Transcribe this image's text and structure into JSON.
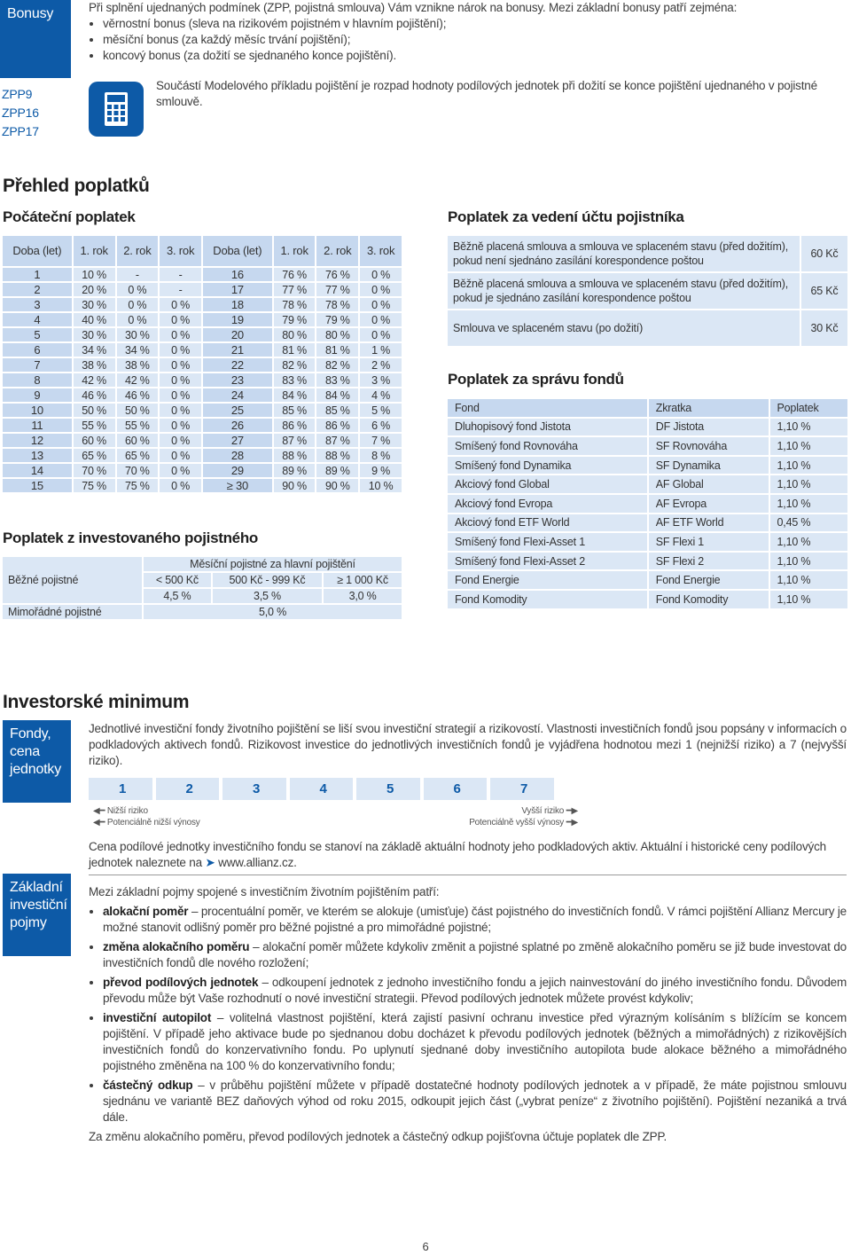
{
  "bonus": {
    "side_label": "Bonusy",
    "zpp": [
      "ZPP9",
      "ZPP16",
      "ZPP17"
    ],
    "intro": "Při splnění ujednaných podmínek (ZPP, pojistná smlouva) Vám vznikne nárok na bonusy. Mezi základní bonusy patří zejména:",
    "items": [
      "věrnostní bonus (sleva na rizikovém pojistném v hlavním pojištění);",
      "měsíční bonus (za každý měsíc trvání pojištění);",
      "koncový bonus (za dožití se sjednaného konce pojištění)."
    ],
    "note": "Součástí Modelového příkladu pojištění je rozpad hodnoty podílových jednotek při dožití se konce pojištění ujednaného v pojistné smlouvě."
  },
  "fees": {
    "title": "Přehled poplatků"
  },
  "initial": {
    "title": "Počáteční poplatek",
    "headers": [
      "Doba (let)",
      "1. rok",
      "2. rok",
      "3. rok",
      "Doba (let)",
      "1. rok",
      "2. rok",
      "3. rok"
    ],
    "rows": [
      [
        "1",
        "10 %",
        "-",
        "-",
        "16",
        "76 %",
        "76 %",
        "0 %"
      ],
      [
        "2",
        "20 %",
        "0 %",
        "-",
        "17",
        "77 %",
        "77 %",
        "0 %"
      ],
      [
        "3",
        "30 %",
        "0 %",
        "0 %",
        "18",
        "78 %",
        "78 %",
        "0 %"
      ],
      [
        "4",
        "40 %",
        "0 %",
        "0 %",
        "19",
        "79 %",
        "79 %",
        "0 %"
      ],
      [
        "5",
        "30 %",
        "30 %",
        "0 %",
        "20",
        "80 %",
        "80 %",
        "0 %"
      ],
      [
        "6",
        "34 %",
        "34 %",
        "0 %",
        "21",
        "81 %",
        "81 %",
        "1 %"
      ],
      [
        "7",
        "38 %",
        "38 %",
        "0 %",
        "22",
        "82 %",
        "82 %",
        "2 %"
      ],
      [
        "8",
        "42 %",
        "42 %",
        "0 %",
        "23",
        "83 %",
        "83 %",
        "3 %"
      ],
      [
        "9",
        "46 %",
        "46 %",
        "0 %",
        "24",
        "84 %",
        "84 %",
        "4 %"
      ],
      [
        "10",
        "50 %",
        "50 %",
        "0 %",
        "25",
        "85 %",
        "85 %",
        "5 %"
      ],
      [
        "11",
        "55 %",
        "55 %",
        "0 %",
        "26",
        "86 %",
        "86 %",
        "6 %"
      ],
      [
        "12",
        "60 %",
        "60 %",
        "0 %",
        "27",
        "87 %",
        "87 %",
        "7 %"
      ],
      [
        "13",
        "65 %",
        "65 %",
        "0 %",
        "28",
        "88 %",
        "88 %",
        "8 %"
      ],
      [
        "14",
        "70 %",
        "70 %",
        "0 %",
        "29",
        "89 %",
        "89 %",
        "9 %"
      ],
      [
        "15",
        "75 %",
        "75 %",
        "0 %",
        "≥ 30",
        "90 %",
        "90 %",
        "10 %"
      ]
    ]
  },
  "invested": {
    "title": "Poplatek z investovaného pojistného",
    "regular_label": "Běžné pojistné",
    "header": "Měsíční pojistné za hlavní pojištění",
    "bands": [
      "< 500 Kč",
      "500 Kč - 999 Kč",
      "≥ 1 000 Kč"
    ],
    "rates": [
      "4,5 %",
      "3,5 %",
      "3,0 %"
    ],
    "extra_label": "Mimořádné pojistné",
    "extra_rate": "5,0 %"
  },
  "account": {
    "title": "Poplatek za vedení účtu pojistníka",
    "rows": [
      [
        "Běžně placená smlouva a smlouva ve splaceném stavu (před dožitím), pokud není sjednáno zasílání korespondence poštou",
        "60 Kč"
      ],
      [
        "Běžně placená smlouva a smlouva ve splaceném stavu (před dožitím), pokud je sjednáno zasílání korespondence poštou",
        "65 Kč"
      ],
      [
        "Smlouva ve splaceném stavu (po dožití)",
        "30 Kč"
      ]
    ]
  },
  "fund_admin": {
    "title": "Poplatek za správu fondů",
    "headers": [
      "Fond",
      "Zkratka",
      "Poplatek"
    ],
    "rows": [
      [
        "Dluhopisový fond Jistota",
        "DF Jistota",
        "1,10 %"
      ],
      [
        "Smíšený fond Rovnováha",
        "SF Rovnováha",
        "1,10 %"
      ],
      [
        "Smíšený fond Dynamika",
        "SF Dynamika",
        "1,10 %"
      ],
      [
        "Akciový fond Global",
        "AF Global",
        "1,10 %"
      ],
      [
        "Akciový fond Evropa",
        "AF Evropa",
        "1,10 %"
      ],
      [
        "Akciový fond ETF World",
        "AF ETF World",
        "0,45 %"
      ],
      [
        "Smíšený fond Flexi-Asset 1",
        "SF Flexi 1",
        "1,10 %"
      ],
      [
        "Smíšený fond Flexi-Asset 2",
        "SF Flexi 2",
        "1,10 %"
      ],
      [
        "Fond Energie",
        "Fond Energie",
        "1,10 %"
      ],
      [
        "Fond Komodity",
        "Fond Komodity",
        "1,10 %"
      ]
    ]
  },
  "minimum": {
    "title": "Investorské minimum",
    "side_label": "Fondy, cena jednotky",
    "text": "Jednotlivé investiční fondy životního pojištění se liší svou investiční strategií a rizikovostí. Vlastnosti investičních fondů jsou popsány v informacích o podkladových aktivech fondů. Rizikovost investice do jednotlivých investičních fondů je vyjádřena hodnotou mezi 1 (nejnižší riziko) a 7 (nejvyšší riziko).",
    "risk": [
      1,
      2,
      3,
      4,
      5,
      6,
      7
    ],
    "low": "Nižší riziko",
    "low2": "Potenciálně nižší výnosy",
    "high": "Vyšší riziko",
    "high2": "Potenciálně vyšší výnosy",
    "price_text": "Cena podílové jednotky investičního fondu se stanoví na základě aktuální hodnoty jeho podkladových aktiv. Aktuální i historické ceny podílových jednotek naleznete na",
    "link": "www.allianz.cz."
  },
  "basics": {
    "side_label": "Základní investiční pojmy",
    "intro": "Mezi základní pojmy spojené s investičním životním pojištěním patří:",
    "items": [
      {
        "term": "alokační poměr",
        "text": "– procentuální poměr, ve kterém se alokuje (umisťuje) část pojistného do investičních fondů. V rámci pojištění Allianz Mercury je možné stanovit odlišný poměr pro běžné pojistné a pro mimořádné pojistné;"
      },
      {
        "term": "změna alokačního poměru",
        "text": "– alokační poměr můžete kdykoliv změnit a pojistné splatné po změně alokačního poměru se již bude investovat do investičních fondů dle nového rozložení;"
      },
      {
        "term": "převod podílových jednotek",
        "text": "– odkoupení jednotek z jednoho investičního fondu a jejich nainvestování do jiného investičního fondu. Důvodem převodu může být Vaše rozhodnutí o nové investiční strategii. Převod podílových jednotek můžete provést kdykoliv;"
      },
      {
        "term": "investiční autopilot",
        "text": "– volitelná vlastnost pojištění, která zajistí pasivní ochranu investice před výrazným kolísáním s blížícím se koncem pojištění. V případě jeho aktivace bude po sjednanou dobu docházet k převodu podílových jednotek (běžných a mimořádných) z rizikovějších investičních fondů do konzervativního fondu. Po uplynutí sjednané doby investičního autopilota bude alokace běžného a mimořádného pojistného změněna na 100 % do konzervativního fondu;"
      },
      {
        "term": "částečný odkup",
        "text": "– v průběhu pojištění můžete v případě dostatečné hodnoty podílových jednotek a v případě, že máte pojistnou smlouvu sjednánu ve variantě BEZ daňových výhod od roku 2015, odkoupit jejich část („vybrat peníze“ z životního pojištění). Pojištění nezaniká a trvá dále."
      }
    ],
    "outro": "Za změnu alokačního poměru, převod podílových jednotek a částečný odkup pojišťovna účtuje poplatek dle ZPP."
  },
  "page_number": "6"
}
